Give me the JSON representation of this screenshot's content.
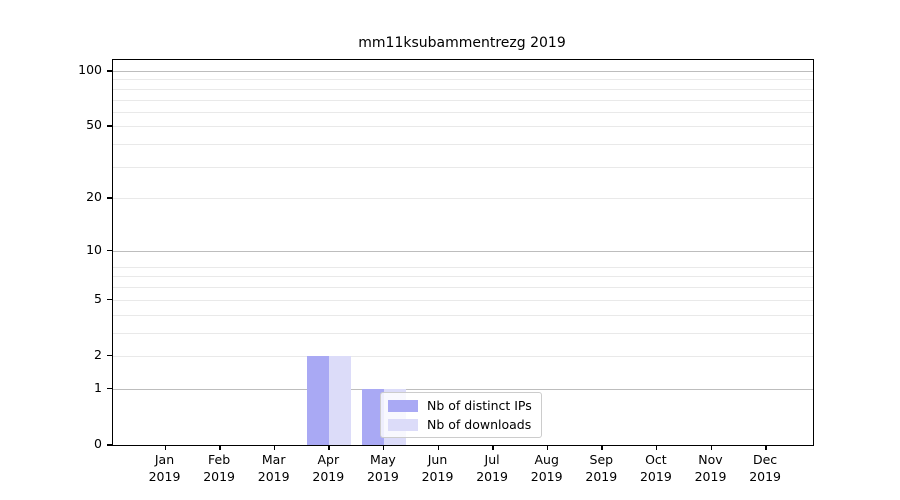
{
  "title": "mm11ksubammentrezg 2019",
  "colors": {
    "distinct_ips": "#a9a9f4",
    "downloads": "#dcdcf9",
    "grid_major": "#bdbdbd",
    "grid_minor": "#e9e9e9",
    "axis": "#000000",
    "background": "#ffffff"
  },
  "legend": {
    "items": [
      {
        "label": "Nb of distinct IPs",
        "color_key": "distinct_ips"
      },
      {
        "label": "Nb of downloads",
        "color_key": "downloads"
      }
    ]
  },
  "chart_data": {
    "type": "bar",
    "title": "mm11ksubammentrezg 2019",
    "categories": [
      "Jan",
      "Feb",
      "Mar",
      "Apr",
      "May",
      "Jun",
      "Jul",
      "Aug",
      "Sep",
      "Oct",
      "Nov",
      "Dec"
    ],
    "category_year": "2019",
    "series": [
      {
        "name": "Nb of distinct IPs",
        "color_key": "distinct_ips",
        "values": [
          0,
          0,
          0,
          2,
          1,
          0,
          0,
          0,
          0,
          0,
          0,
          0
        ]
      },
      {
        "name": "Nb of downloads",
        "color_key": "downloads",
        "values": [
          0,
          0,
          0,
          2,
          1,
          0,
          0,
          0,
          0,
          0,
          0,
          0
        ]
      }
    ],
    "xlabel": "",
    "ylabel": "",
    "yscale": "log1p",
    "ylim": [
      0,
      100
    ],
    "y_ticks": [
      0,
      1,
      2,
      5,
      10,
      20,
      50,
      100
    ],
    "y_major_gridlines": [
      1,
      10,
      100
    ],
    "y_minor_gridlines": [
      2,
      3,
      4,
      5,
      6,
      7,
      8,
      20,
      30,
      40,
      50,
      60,
      70,
      80,
      90
    ],
    "grid": true,
    "legend_position": "lower center"
  }
}
